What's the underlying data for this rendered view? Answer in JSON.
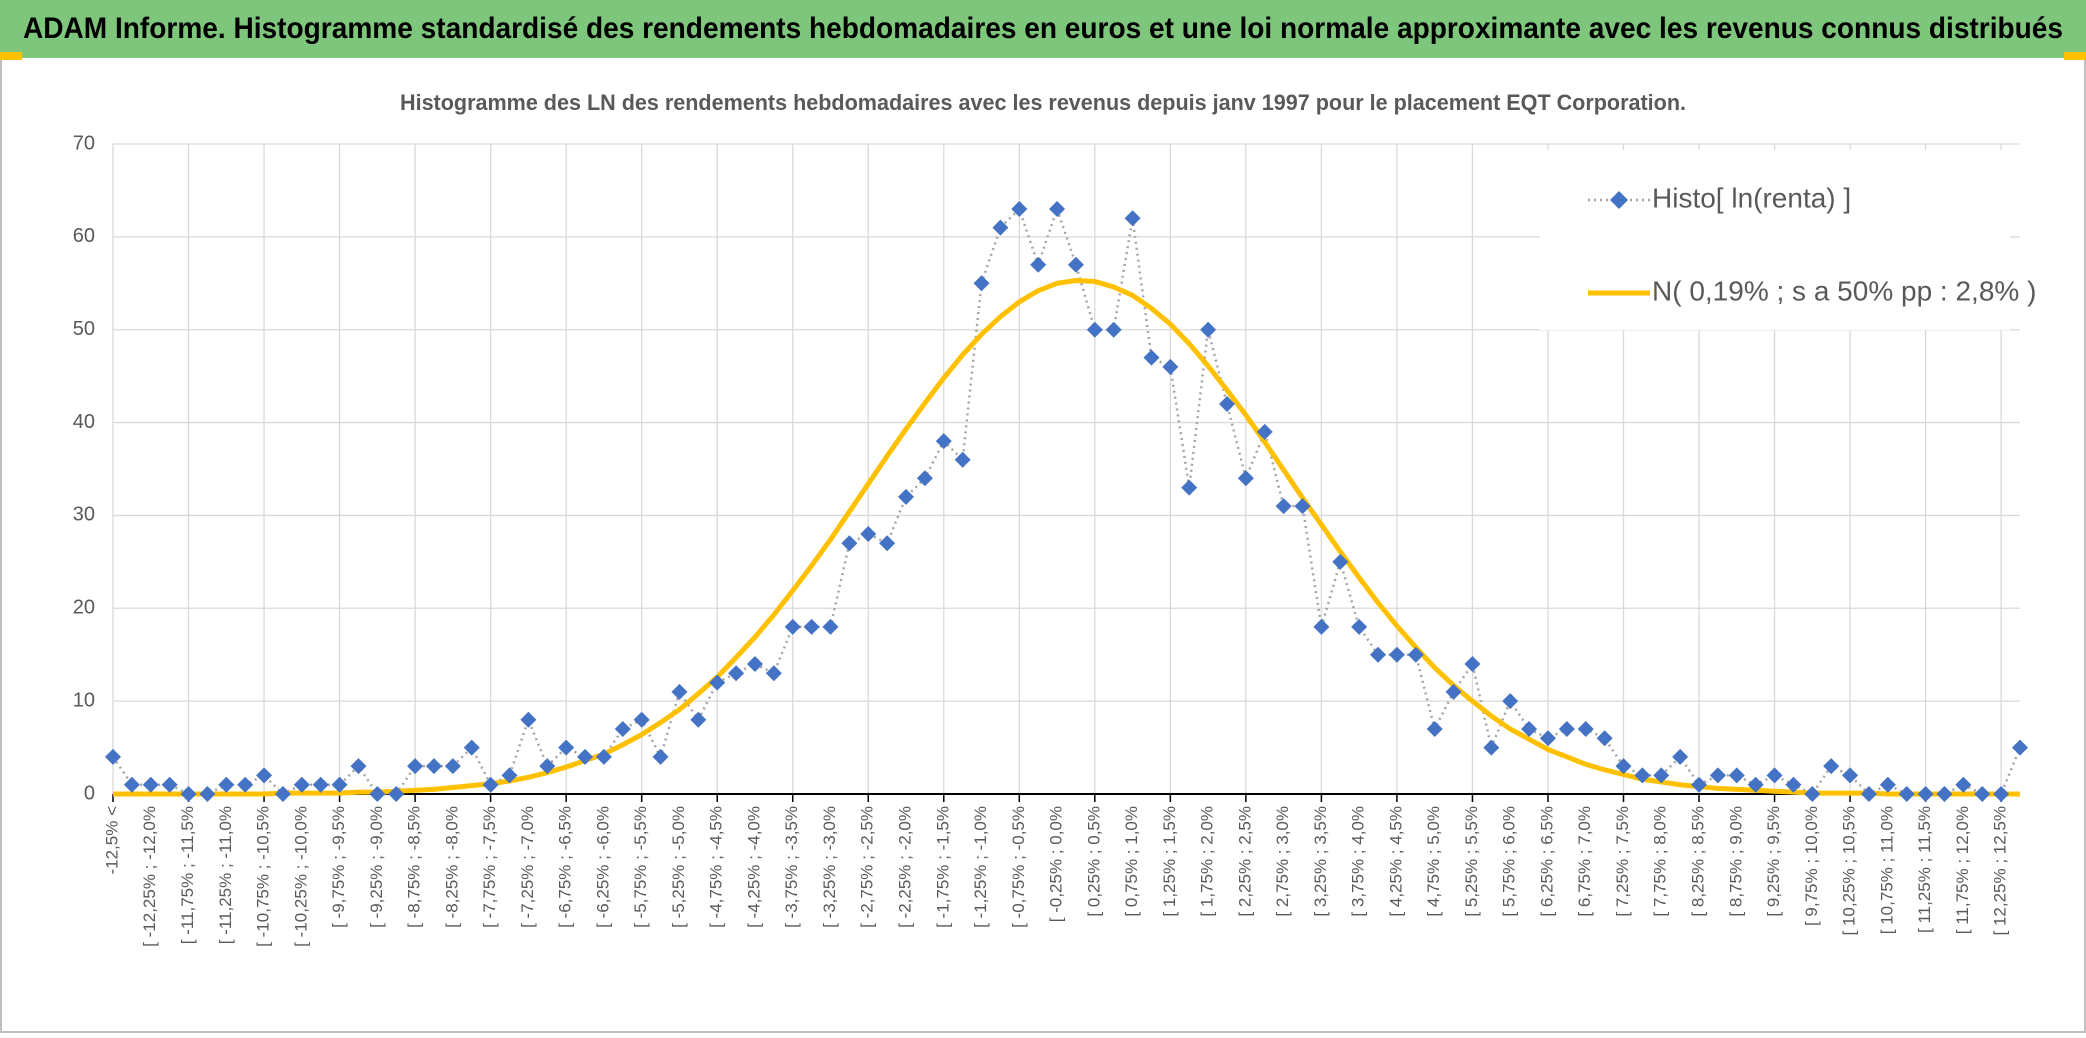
{
  "chart_data": {
    "type": "line",
    "header": "ADAM Informe. Histogramme standardisé des rendements hebdomadaires en euros et une loi normale approximante avec les revenus connus distribués",
    "title": "Histogramme des LN des rendements hebdomadaires avec les revenus depuis janv 1997 pour le placement EQT Corporation.",
    "categories": [
      "-12,5% <",
      null,
      "[ -12,25% ; -12,0%",
      null,
      "[ -11,75% ; -11,5%",
      null,
      "[ -11,25% ; -11,0%",
      null,
      "[ -10,75% ; -10,5%",
      null,
      "[ -10,25% ; -10,0%",
      null,
      "[ -9,75% ; -9,5%",
      null,
      "[ -9,25% ; -9,0%",
      null,
      "[ -8,75% ; -8,5%",
      null,
      "[ -8,25% ; -8,0%",
      null,
      "[ -7,75% ; -7,5%",
      null,
      "[ -7,25% ; -7,0%",
      null,
      "[ -6,75% ; -6,5%",
      null,
      "[ -6,25% ; -6,0%",
      null,
      "[ -5,75% ; -5,5%",
      null,
      "[ -5,25% ; -5,0%",
      null,
      "[ -4,75% ; -4,5%",
      null,
      "[ -4,25% ; -4,0%",
      null,
      "[ -3,75% ; -3,5%",
      null,
      "[ -3,25% ; -3,0%",
      null,
      "[ -2,75% ; -2,5%",
      null,
      "[ -2,25% ; -2,0%",
      null,
      "[ -1,75% ; -1,5%",
      null,
      "[ -1,25% ; -1,0%",
      null,
      "[ -0,75% ; -0,5%",
      null,
      "[ -0,25% ; 0,0%",
      null,
      "[ 0,25% ; 0,5%",
      null,
      "[ 0,75% ; 1,0%",
      null,
      "[ 1,25% ; 1,5%",
      null,
      "[ 1,75% ; 2,0%",
      null,
      "[ 2,25% ; 2,5%",
      null,
      "[ 2,75% ; 3,0%",
      null,
      "[ 3,25% ; 3,5%",
      null,
      "[ 3,75% ; 4,0%",
      null,
      "[ 4,25% ; 4,5%",
      null,
      "[ 4,75% ; 5,0%",
      null,
      "[ 5,25% ; 5,5%",
      null,
      "[ 5,75% ; 6,0%",
      null,
      "[ 6,25% ; 6,5%",
      null,
      "[ 6,75% ; 7,0%",
      null,
      "[ 7,25% ; 7,5%",
      null,
      "[ 7,75% ; 8,0%",
      null,
      "[ 8,25% ; 8,5%",
      null,
      "[ 8,75% ; 9,0%",
      null,
      "[ 9,25% ; 9,5%",
      null,
      "[ 9,75% ; 10,0%",
      null,
      "[ 10,25% ; 10,5%",
      null,
      "[ 10,75% ; 11,0%",
      null,
      "[ 11,25% ; 11,5%",
      null,
      "[ 11,75% ; 12,0%",
      null,
      "[ 12,25% ; 12,5%",
      null
    ],
    "series": [
      {
        "name": "Histo[ ln(renta) ]",
        "color": "#4472c4",
        "line_color": "#a5a5a5",
        "values": [
          4,
          1,
          1,
          1,
          0,
          0,
          1,
          1,
          2,
          0,
          1,
          1,
          1,
          3,
          0,
          0,
          3,
          3,
          3,
          5,
          1,
          2,
          8,
          3,
          5,
          4,
          4,
          7,
          8,
          4,
          11,
          8,
          12,
          13,
          14,
          13,
          18,
          18,
          18,
          27,
          28,
          27,
          32,
          34,
          38,
          36,
          55,
          61,
          63,
          57,
          63,
          57,
          50,
          50,
          62,
          47,
          46,
          33,
          50,
          42,
          34,
          39,
          31,
          31,
          18,
          25,
          18,
          15,
          15,
          15,
          7,
          11,
          14,
          5,
          10,
          7,
          6,
          7,
          7,
          6,
          3,
          2,
          2,
          4,
          1,
          2,
          2,
          1,
          2,
          1,
          0,
          3,
          2,
          0,
          1,
          0,
          0,
          0,
          1,
          0,
          0,
          5
        ]
      },
      {
        "name": "N( 0,19% ; s a 50% pp : 2,8% )",
        "color": "#ffc000",
        "values": [
          0,
          0,
          0,
          0,
          0,
          0,
          0,
          0,
          0,
          0.1,
          0.1,
          0.1,
          0.1,
          0.2,
          0.2,
          0.3,
          0.4,
          0.5,
          0.7,
          0.9,
          1.1,
          1.4,
          1.8,
          2.3,
          2.9,
          3.6,
          4.3,
          5.3,
          6.4,
          7.7,
          9.1,
          10.8,
          12.6,
          14.7,
          16.9,
          19.3,
          21.9,
          24.6,
          27.4,
          30.4,
          33.4,
          36.4,
          39.3,
          42.1,
          44.8,
          47.3,
          49.5,
          51.4,
          53.0,
          54.2,
          55.0,
          55.3,
          55.2,
          54.6,
          53.7,
          52.3,
          50.6,
          48.5,
          46.1,
          43.5,
          40.8,
          37.9,
          34.9,
          31.9,
          29.0,
          26.1,
          23.3,
          20.6,
          18.1,
          15.8,
          13.6,
          11.7,
          10.0,
          8.4,
          7.0,
          5.9,
          4.8,
          4.0,
          3.2,
          2.6,
          2.1,
          1.6,
          1.3,
          1.0,
          0.8,
          0.6,
          0.5,
          0.4,
          0.3,
          0.2,
          0.1,
          0.1,
          0.1,
          0.1,
          0,
          0,
          0,
          0,
          0,
          0,
          0,
          0
        ]
      }
    ],
    "ylim": [
      0,
      70
    ],
    "yticks": [
      0,
      10,
      20,
      30,
      40,
      50,
      60,
      70
    ],
    "grid": true,
    "legend": "top-right"
  }
}
